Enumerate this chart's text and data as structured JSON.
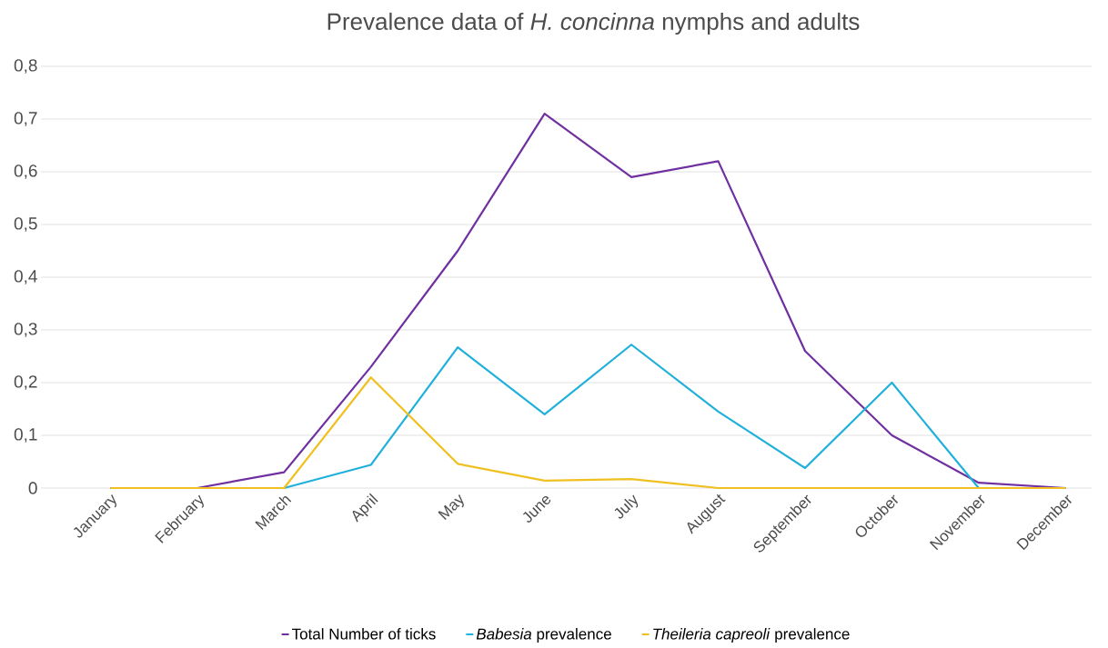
{
  "chart_data": {
    "type": "line",
    "title": "Prevalence data of *H. concinna* nymphs and adults",
    "categories": [
      "January",
      "February",
      "March",
      "April",
      "May",
      "June",
      "July",
      "August",
      "September",
      "October",
      "November",
      "December"
    ],
    "series": [
      {
        "name": "Total Number of ticks",
        "color": "#7030a0",
        "values": [
          0,
          0,
          0.03,
          0.23,
          0.45,
          0.71,
          0.59,
          0.62,
          0.26,
          0.1,
          0.01,
          0
        ]
      },
      {
        "name": "*Babesia* prevalence",
        "color": "#1fb0dc",
        "values": [
          0,
          0,
          0,
          0.044,
          0.267,
          0.14,
          0.272,
          0.145,
          0.038,
          0.2,
          0,
          0
        ]
      },
      {
        "name": "*Theileria capreoli* prevalence",
        "color": "#f0c020",
        "values": [
          0,
          0,
          0,
          0.21,
          0.046,
          0.014,
          0.017,
          0,
          0,
          0,
          0,
          0
        ]
      }
    ],
    "ylim": [
      0,
      0.8
    ],
    "yticks": [
      0,
      {
        "value": 0.1,
        "label": "0,1"
      },
      {
        "value": 0.2,
        "label": "0,2"
      },
      {
        "value": 0.3,
        "label": "0,3"
      },
      {
        "value": 0.4,
        "label": "0,4"
      },
      {
        "value": 0.5,
        "label": "0,5"
      },
      {
        "value": 0.6,
        "label": "0,6"
      },
      {
        "value": 0.7,
        "label": "0,7"
      },
      {
        "value": 0.8,
        "label": "0,8"
      }
    ],
    "grid": "y",
    "legend": "bottom"
  }
}
